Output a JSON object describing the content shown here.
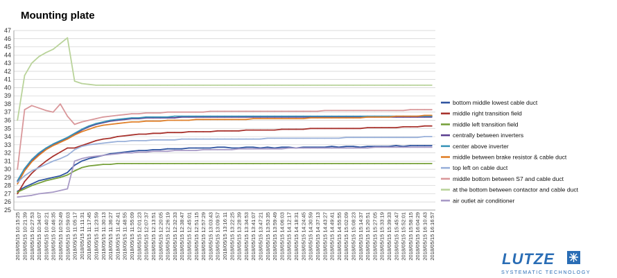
{
  "chart_data": {
    "type": "line",
    "title": "Mounting plate",
    "xlabel": "",
    "ylabel": "",
    "ylim": [
      25,
      47
    ],
    "yticks": [
      25,
      26,
      27,
      28,
      29,
      30,
      31,
      32,
      33,
      34,
      35,
      36,
      37,
      38,
      39,
      40,
      41,
      42,
      43,
      44,
      45,
      46,
      47
    ],
    "grid": true,
    "legend_position": "right",
    "x": [
      "2018/05/15 10:15:25",
      "2018/05/15 10:21:39",
      "2018/05/15 10:27:53",
      "2018/05/15 10:34:07",
      "2018/05/15 10:40:21",
      "2018/05/15 10:46:35",
      "2018/05/15 10:52:49",
      "2018/05/15 10:59:03",
      "2018/05/15 11:05:17",
      "2018/05/15 11:11:31",
      "2018/05/15 11:17:45",
      "2018/05/15 11:23:59",
      "2018/05/15 11:30:13",
      "2018/05/15 11:36:27",
      "2018/05/15 11:42:41",
      "2018/05/15 11:48:55",
      "2018/05/15 11:55:09",
      "2018/05/15 12:01:23",
      "2018/05/15 12:07:37",
      "2018/05/15 12:13:51",
      "2018/05/15 12:20:05",
      "2018/05/15 12:26:19",
      "2018/05/15 12:32:33",
      "2018/05/15 12:38:47",
      "2018/05/15 12:45:01",
      "2018/05/15 12:51:15",
      "2018/05/15 12:57:29",
      "2018/05/15 13:03:43",
      "2018/05/15 13:09:57",
      "2018/05/15 13:16:11",
      "2018/05/15 13:22:25",
      "2018/05/15 13:28:39",
      "2018/05/15 13:34:53",
      "2018/05/15 13:41:07",
      "2018/05/15 13:47:21",
      "2018/05/15 13:53:35",
      "2018/05/15 13:59:49",
      "2018/05/15 14:06:03",
      "2018/05/15 14:12:17",
      "2018/05/15 14:18:31",
      "2018/05/15 14:24:45",
      "2018/05/15 14:30:59",
      "2018/05/15 14:37:13",
      "2018/05/15 14:43:27",
      "2018/05/15 14:49:41",
      "2018/05/15 14:55:55",
      "2018/05/15 15:02:09",
      "2018/05/15 15:08:23",
      "2018/05/15 15:14:37",
      "2018/05/15 15:20:51",
      "2018/05/15 15:27:05",
      "2018/05/15 15:33:19",
      "2018/05/15 15:39:33",
      "2018/05/15 15:45:47",
      "2018/05/15 15:52:01",
      "2018/05/15 15:58:15",
      "2018/05/15 16:04:29",
      "2018/05/15 16:10:43",
      "2018/05/15 16:16:57"
    ],
    "series": [
      {
        "name": "bottom middle lowest cable duct",
        "color": "#2f54a0",
        "values": [
          27.3,
          27.8,
          28.2,
          28.6,
          28.8,
          29.0,
          29.2,
          29.6,
          30.5,
          31.0,
          31.3,
          31.5,
          31.7,
          31.9,
          32.0,
          32.1,
          32.2,
          32.3,
          32.3,
          32.4,
          32.4,
          32.5,
          32.5,
          32.5,
          32.6,
          32.6,
          32.6,
          32.6,
          32.7,
          32.7,
          32.6,
          32.6,
          32.7,
          32.7,
          32.6,
          32.7,
          32.6,
          32.7,
          32.7,
          32.6,
          32.7,
          32.7,
          32.7,
          32.7,
          32.8,
          32.7,
          32.8,
          32.8,
          32.7,
          32.8,
          32.8,
          32.8,
          32.8,
          32.9,
          32.8,
          32.9,
          32.9,
          32.9,
          32.9
        ]
      },
      {
        "name": "middle right transition field",
        "color": "#a8322d",
        "values": [
          27.0,
          28.5,
          29.5,
          30.3,
          31.0,
          31.6,
          32.1,
          32.6,
          32.6,
          32.9,
          33.2,
          33.5,
          33.7,
          33.8,
          34.0,
          34.1,
          34.2,
          34.3,
          34.3,
          34.4,
          34.4,
          34.5,
          34.5,
          34.5,
          34.6,
          34.6,
          34.6,
          34.6,
          34.7,
          34.7,
          34.7,
          34.7,
          34.8,
          34.8,
          34.8,
          34.8,
          34.8,
          34.9,
          34.9,
          34.9,
          34.9,
          35.0,
          35.0,
          35.0,
          35.0,
          35.0,
          35.0,
          35.0,
          35.0,
          35.1,
          35.1,
          35.1,
          35.1,
          35.1,
          35.2,
          35.2,
          35.2,
          35.3,
          35.3
        ]
      },
      {
        "name": "middle left transition field",
        "color": "#77a03a",
        "values": [
          27.2,
          27.6,
          28.0,
          28.3,
          28.6,
          28.8,
          29.0,
          29.3,
          29.8,
          30.2,
          30.4,
          30.5,
          30.6,
          30.6,
          30.7,
          30.7,
          30.7,
          30.7,
          30.7,
          30.7,
          30.7,
          30.7,
          30.7,
          30.7,
          30.7,
          30.7,
          30.7,
          30.7,
          30.7,
          30.7,
          30.7,
          30.7,
          30.7,
          30.7,
          30.7,
          30.7,
          30.7,
          30.7,
          30.7,
          30.7,
          30.7,
          30.7,
          30.7,
          30.7,
          30.7,
          30.7,
          30.7,
          30.7,
          30.7,
          30.7,
          30.7,
          30.7,
          30.7,
          30.7,
          30.7,
          30.7,
          30.7,
          30.7,
          30.7
        ]
      },
      {
        "name": "centrally between inverters",
        "color": "#5b3f90",
        "values": [
          28.5,
          30.0,
          31.0,
          31.8,
          32.5,
          33.0,
          33.4,
          33.8,
          34.3,
          34.8,
          35.2,
          35.5,
          35.7,
          35.9,
          36.0,
          36.1,
          36.2,
          36.2,
          36.3,
          36.3,
          36.3,
          36.3,
          36.3,
          36.4,
          36.4,
          36.4,
          36.4,
          36.4,
          36.4,
          36.4,
          36.4,
          36.4,
          36.4,
          36.4,
          36.4,
          36.4,
          36.4,
          36.4,
          36.4,
          36.4,
          36.4,
          36.4,
          36.4,
          36.4,
          36.4,
          36.4,
          36.4,
          36.4,
          36.4,
          36.4,
          36.4,
          36.4,
          36.4,
          36.4,
          36.4,
          36.4,
          36.4,
          36.4,
          36.4
        ]
      },
      {
        "name": "center above inverter",
        "color": "#3a95b8",
        "values": [
          28.6,
          30.1,
          31.2,
          32.0,
          32.6,
          33.1,
          33.5,
          33.9,
          34.4,
          34.9,
          35.3,
          35.6,
          35.8,
          36.0,
          36.1,
          36.2,
          36.3,
          36.3,
          36.4,
          36.4,
          36.4,
          36.4,
          36.5,
          36.5,
          36.5,
          36.5,
          36.5,
          36.5,
          36.5,
          36.5,
          36.5,
          36.5,
          36.5,
          36.5,
          36.5,
          36.5,
          36.5,
          36.5,
          36.5,
          36.5,
          36.5,
          36.5,
          36.5,
          36.5,
          36.5,
          36.5,
          36.5,
          36.5,
          36.5,
          36.5,
          36.5,
          36.5,
          36.5,
          36.5,
          36.5,
          36.5,
          36.5,
          36.5,
          36.5
        ]
      },
      {
        "name": "middle between brake resistor & cable duct",
        "color": "#e0802a",
        "values": [
          28.2,
          29.8,
          30.9,
          31.7,
          32.4,
          32.9,
          33.3,
          33.7,
          34.2,
          34.6,
          34.9,
          35.2,
          35.4,
          35.5,
          35.6,
          35.7,
          35.8,
          35.8,
          35.9,
          35.9,
          35.9,
          36.0,
          36.0,
          36.0,
          36.0,
          36.1,
          36.1,
          36.1,
          36.1,
          36.1,
          36.1,
          36.1,
          36.1,
          36.2,
          36.2,
          36.2,
          36.2,
          36.2,
          36.2,
          36.2,
          36.2,
          36.3,
          36.3,
          36.3,
          36.3,
          36.3,
          36.3,
          36.3,
          36.3,
          36.4,
          36.4,
          36.4,
          36.4,
          36.5,
          36.5,
          36.5,
          36.5,
          36.6,
          36.6
        ]
      },
      {
        "name": "top left on cable duct",
        "color": "#9ab1da",
        "values": [
          28.4,
          29.2,
          29.8,
          30.2,
          30.6,
          31.0,
          31.3,
          31.7,
          32.4,
          32.8,
          33.0,
          33.1,
          33.2,
          33.3,
          33.4,
          33.4,
          33.5,
          33.5,
          33.5,
          33.6,
          33.6,
          33.6,
          33.6,
          33.7,
          33.7,
          33.7,
          33.7,
          33.7,
          33.7,
          33.7,
          33.7,
          33.7,
          33.7,
          33.7,
          33.7,
          33.8,
          33.8,
          33.8,
          33.8,
          33.8,
          33.8,
          33.8,
          33.8,
          33.8,
          33.8,
          33.8,
          33.9,
          33.9,
          33.9,
          33.9,
          33.9,
          33.9,
          33.9,
          33.9,
          33.9,
          33.9,
          33.9,
          34.0,
          34.0
        ]
      },
      {
        "name": "middle bottom between S7 and cable duct",
        "color": "#d9979a",
        "values": [
          30.0,
          37.3,
          37.8,
          37.5,
          37.2,
          37.0,
          38.0,
          36.5,
          35.5,
          35.8,
          36.0,
          36.2,
          36.4,
          36.5,
          36.6,
          36.7,
          36.8,
          36.8,
          36.9,
          36.9,
          36.9,
          37.0,
          37.0,
          37.0,
          37.0,
          37.0,
          37.0,
          37.1,
          37.1,
          37.1,
          37.1,
          37.1,
          37.1,
          37.1,
          37.1,
          37.1,
          37.1,
          37.1,
          37.1,
          37.1,
          37.1,
          37.1,
          37.1,
          37.2,
          37.2,
          37.2,
          37.2,
          37.2,
          37.2,
          37.2,
          37.2,
          37.2,
          37.2,
          37.2,
          37.2,
          37.3,
          37.3,
          37.3,
          37.3
        ]
      },
      {
        "name": "at the bottom between contactor and cable duct",
        "color": "#b9d39a",
        "values": [
          36.0,
          41.5,
          43.0,
          43.8,
          44.3,
          44.7,
          45.4,
          46.1,
          40.8,
          40.5,
          40.4,
          40.3,
          40.3,
          40.3,
          40.3,
          40.3,
          40.3,
          40.3,
          40.3,
          40.3,
          40.3,
          40.3,
          40.3,
          40.3,
          40.3,
          40.3,
          40.3,
          40.3,
          40.3,
          40.3,
          40.3,
          40.3,
          40.3,
          40.3,
          40.3,
          40.3,
          40.3,
          40.3,
          40.3,
          40.3,
          40.3,
          40.3,
          40.3,
          40.3,
          40.3,
          40.3,
          40.3,
          40.3,
          40.3,
          40.3,
          40.3,
          40.3,
          40.3,
          40.3,
          40.3,
          40.3,
          40.3,
          40.3,
          40.3
        ]
      },
      {
        "name": "air outlet air conditioner",
        "color": "#a89ac6",
        "values": [
          26.6,
          26.7,
          26.8,
          27.0,
          27.1,
          27.2,
          27.4,
          27.6,
          31.0,
          31.3,
          31.5,
          31.6,
          31.7,
          31.8,
          31.9,
          32.0,
          32.0,
          32.1,
          32.1,
          32.2,
          32.2,
          32.2,
          32.3,
          32.3,
          32.3,
          32.3,
          32.4,
          32.4,
          32.4,
          32.4,
          32.4,
          32.5,
          32.5,
          32.5,
          32.5,
          32.5,
          32.5,
          32.5,
          32.6,
          32.6,
          32.6,
          32.6,
          32.6,
          32.6,
          32.6,
          32.6,
          32.6,
          32.6,
          32.6,
          32.6,
          32.7,
          32.7,
          32.7,
          32.7,
          32.7,
          32.7,
          32.7,
          32.7,
          32.7
        ]
      }
    ]
  },
  "logo": {
    "word": "LUTZE",
    "tagline": "SYSTEMATIC TECHNOLOGY",
    "color": "#2a6db5"
  }
}
